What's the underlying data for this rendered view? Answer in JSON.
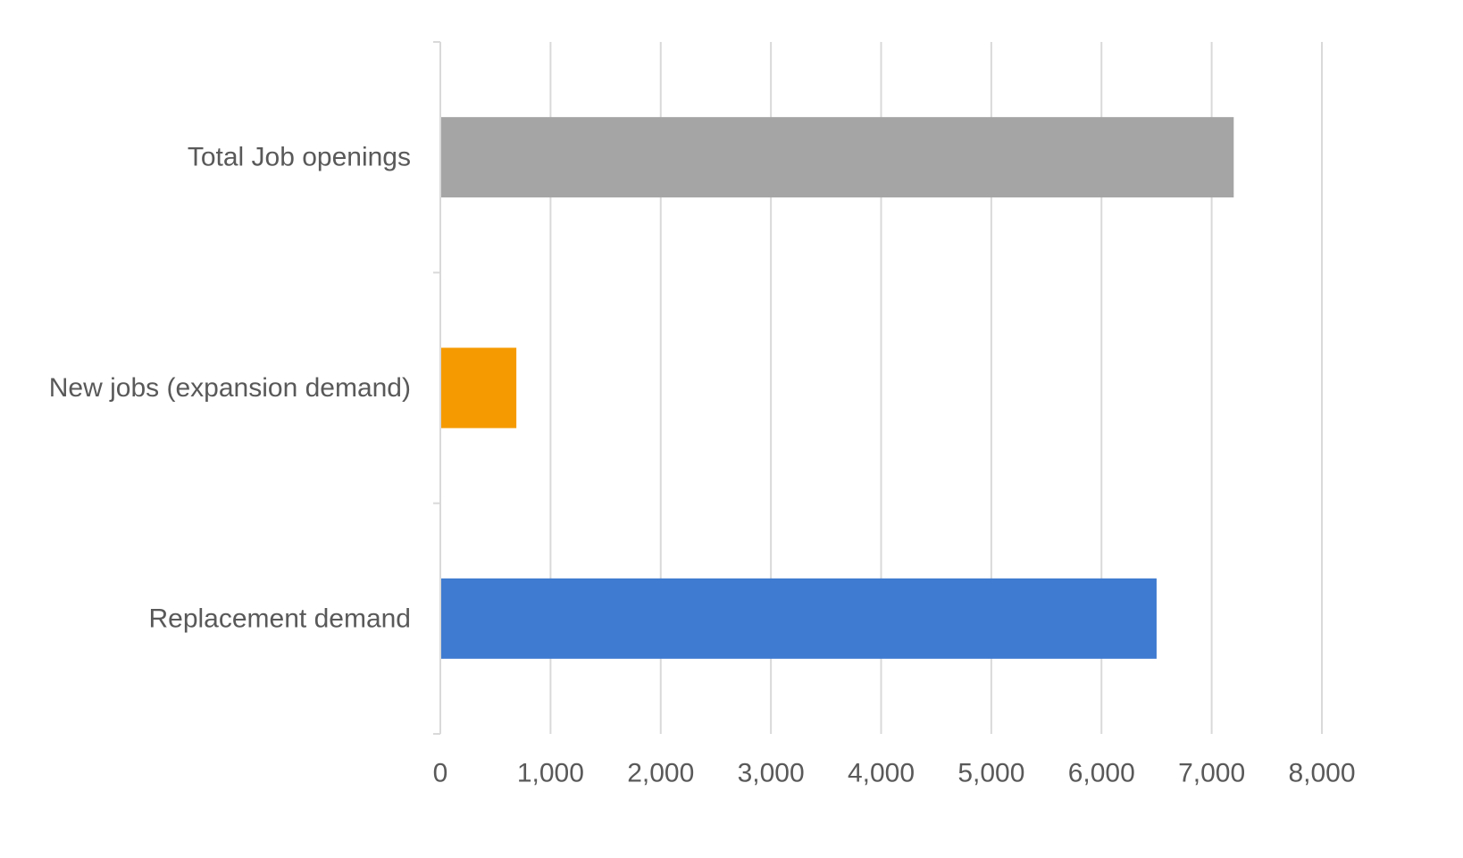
{
  "chart_data": {
    "type": "bar",
    "orientation": "horizontal",
    "title": "",
    "xlabel": "",
    "ylabel": "",
    "categories": [
      "Total Job openings",
      "New jobs (expansion demand)",
      "Replacement demand"
    ],
    "values": [
      7200,
      690,
      6500
    ],
    "colors": [
      "#A5A5A5",
      "#F59A00",
      "#3F7BD0"
    ],
    "xlim": [
      0,
      8000
    ],
    "xticks": [
      0,
      1000,
      2000,
      3000,
      4000,
      5000,
      6000,
      7000,
      8000
    ],
    "xtick_labels": [
      "0",
      "1,000",
      "2,000",
      "3,000",
      "4,000",
      "5,000",
      "6,000",
      "7,000",
      "8,000"
    ],
    "grid": true,
    "legend": "none"
  },
  "style": {
    "gridline_color": "#D9D9D9",
    "axis_color": "#D9D9D9",
    "text_color": "#595959"
  }
}
